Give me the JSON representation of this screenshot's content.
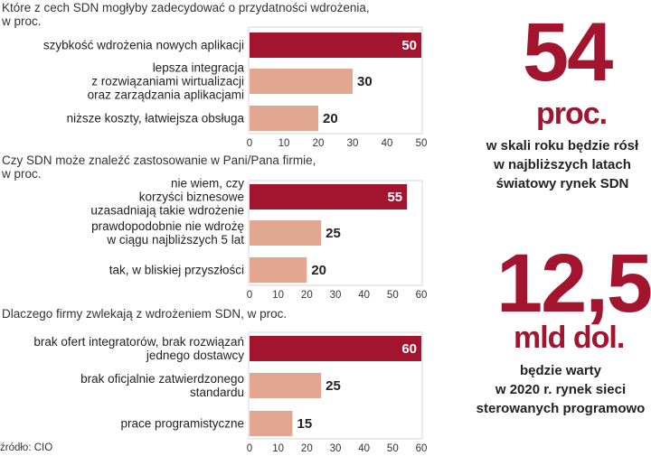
{
  "chart_data": [
    {
      "type": "bar",
      "title": "Które z cech SDN mogłyby zadecydować o przydatności wdrożenia,\nw proc.",
      "categories": [
        "szybkość wdrożenia nowych aplikacji",
        "lepsza integracja\nz rozwiązaniami wirtualizacji\noraz zarządzania aplikacjami",
        "niższe koszty, łatwiejsza obsługa"
      ],
      "values": [
        50,
        30,
        20
      ],
      "xlim": [
        0,
        50
      ],
      "ticks": [
        "0",
        "10",
        "20",
        "30",
        "40",
        "50"
      ]
    },
    {
      "type": "bar",
      "title": "Czy SDN może znaleźć zastosowanie w Pani/Pana firmie,\nw proc.",
      "categories": [
        "nie wiem, czy\nkorzyści biznesowe\nuzasadniają takie wdrożenie",
        "prawdopodobnie nie wdrożę\nw ciągu najbliższych 5 lat",
        "tak, w bliskiej przyszłości"
      ],
      "values": [
        55,
        25,
        20
      ],
      "xlim": [
        0,
        60
      ],
      "ticks": [
        "0",
        "10",
        "20",
        "30",
        "40",
        "50",
        "60"
      ]
    },
    {
      "type": "bar",
      "title": "Dlaczego firmy zwlekają z wdrożeniem SDN, w proc.",
      "categories": [
        "brak ofert integratorów, brak rozwiązań\njednego dostawcy",
        "brak oficjalnie zatwierdzonego\nstandardu",
        "prace programistyczne"
      ],
      "values": [
        60,
        25,
        15
      ],
      "xlim": [
        0,
        60
      ],
      "ticks": [
        "0",
        "10",
        "20",
        "30",
        "40",
        "50",
        "60"
      ]
    }
  ],
  "colors": {
    "highlight": "#a3152f",
    "normal": "#e2a791",
    "frame": "#ebebeb",
    "accent_text": "#a3152f"
  },
  "facts": [
    {
      "number": "54",
      "unit": "proc.",
      "text": "w skali roku będzie rósł\nw najbliższych latach\nświatowy rynek SDN"
    },
    {
      "number": "12,5",
      "unit": "mld dol.",
      "text": "będzie warty\nw 2020 r. rynek sieci\nsterowanych programowo"
    }
  ],
  "source": "źródło: CIO"
}
